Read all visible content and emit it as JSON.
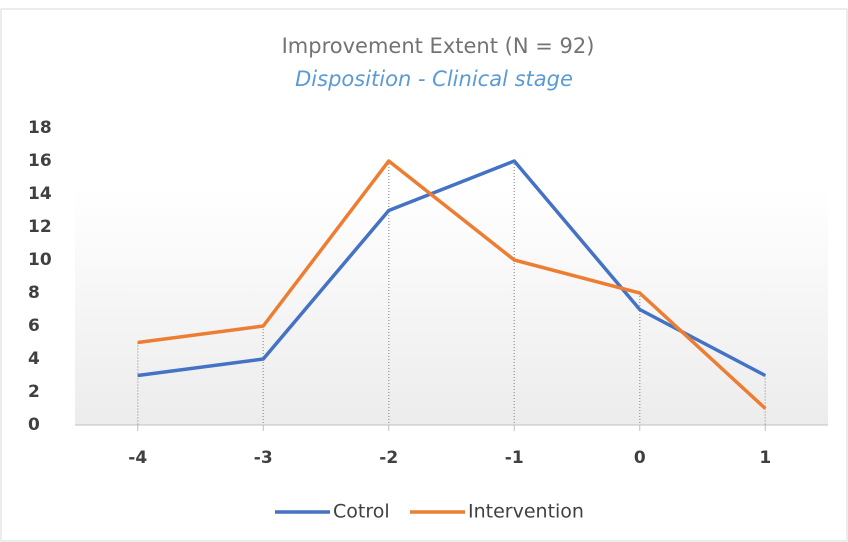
{
  "chart_data": {
    "type": "line",
    "title": "Improvement Extent (N = 92)",
    "subtitle": "Disposition - Clinical stage",
    "x": [
      -4,
      -3,
      -2,
      -1,
      0,
      1
    ],
    "xlim": [
      -4.5,
      1.5
    ],
    "xticks": [
      -4,
      -3,
      -2,
      -1,
      0,
      1
    ],
    "ylim": [
      0,
      18
    ],
    "yticks": [
      0,
      2,
      4,
      6,
      8,
      10,
      12,
      14,
      16,
      18
    ],
    "grid": false,
    "drop_lines": true,
    "legend": "bottom",
    "series": [
      {
        "name": "Cotrol",
        "color": "#4472c4",
        "values": [
          3,
          4,
          13,
          16,
          7,
          3
        ]
      },
      {
        "name": "Intervention",
        "color": "#ed7d31",
        "values": [
          5,
          6,
          16,
          10,
          8,
          1
        ]
      }
    ]
  }
}
